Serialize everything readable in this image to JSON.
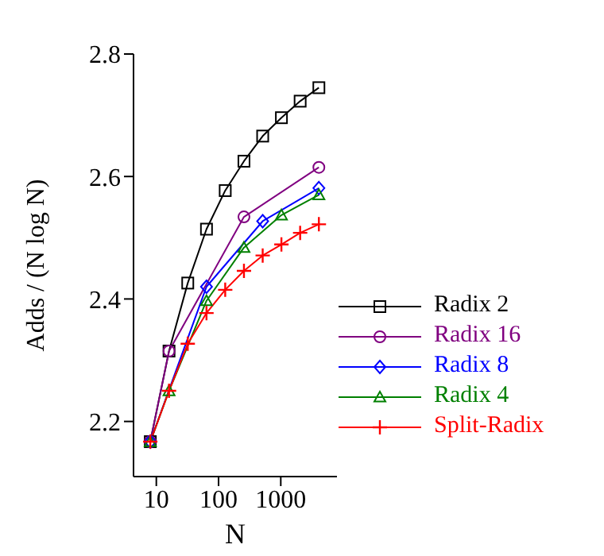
{
  "chart_data": {
    "type": "line",
    "xlabel": "N",
    "ylabel": "Adds / (N log N)",
    "log": "x",
    "xlim": [
      4.3,
      8000
    ],
    "xticks": [
      10,
      100,
      1000
    ],
    "ylim": [
      2.11,
      2.8
    ],
    "yticks": [
      {
        "value": 2.2,
        "label": "2.2"
      },
      {
        "value": 2.4,
        "label": "2.4"
      },
      {
        "value": 2.6,
        "label": "2.6"
      },
      {
        "value": 2.8,
        "label": "2.8"
      }
    ],
    "grid": false,
    "legend": "bottom right",
    "series": [
      {
        "name": "Radix 2",
        "color": "#000000",
        "marker": "square",
        "x": [
          8,
          16,
          32,
          64,
          128,
          256,
          512,
          1024,
          2048,
          4096
        ],
        "values": [
          2.167,
          2.315,
          2.426,
          2.514,
          2.577,
          2.625,
          2.666,
          2.696,
          2.723,
          2.745
        ]
      },
      {
        "name": "Radix 16",
        "color": "#800080",
        "marker": "circle",
        "x": [
          8,
          16,
          256,
          4096
        ],
        "values": [
          2.167,
          2.315,
          2.534,
          2.615
        ]
      },
      {
        "name": "Radix 8",
        "color": "#0000ff",
        "marker": "diamond",
        "x": [
          8,
          64,
          512,
          4096
        ],
        "values": [
          2.167,
          2.42,
          2.527,
          2.581
        ]
      },
      {
        "name": "Radix 4",
        "color": "#008000",
        "marker": "triangle",
        "x": [
          8,
          16,
          64,
          256,
          1024,
          4096
        ],
        "values": [
          2.167,
          2.25,
          2.397,
          2.484,
          2.537,
          2.57
        ]
      },
      {
        "name": "Split-Radix",
        "color": "#ff0000",
        "marker": "cross",
        "x": [
          8,
          16,
          32,
          64,
          128,
          256,
          512,
          1024,
          2048,
          4096
        ],
        "values": [
          2.167,
          2.25,
          2.327,
          2.377,
          2.415,
          2.446,
          2.471,
          2.489,
          2.508,
          2.522
        ]
      }
    ]
  }
}
